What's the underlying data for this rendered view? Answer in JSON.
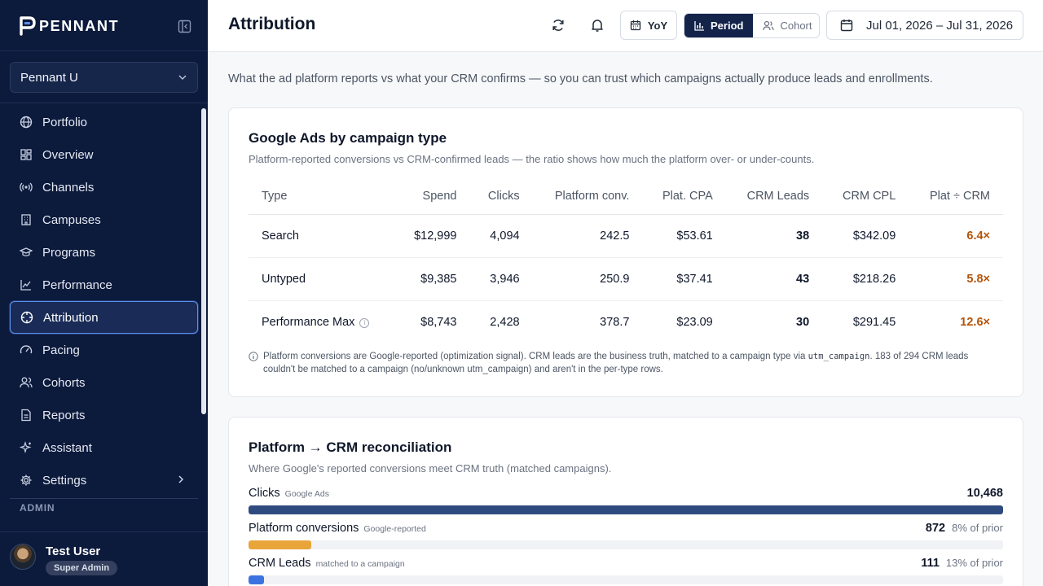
{
  "sidebar": {
    "brand": "PENNANT",
    "org": "Pennant U",
    "items": [
      {
        "label": "Portfolio",
        "icon": "globe-icon"
      },
      {
        "label": "Overview",
        "icon": "grid-icon"
      },
      {
        "label": "Channels",
        "icon": "broadcast-icon"
      },
      {
        "label": "Campuses",
        "icon": "building-icon"
      },
      {
        "label": "Programs",
        "icon": "graduation-cap-icon"
      },
      {
        "label": "Performance",
        "icon": "line-chart-icon"
      },
      {
        "label": "Attribution",
        "icon": "crosshair-icon",
        "active": true
      },
      {
        "label": "Pacing",
        "icon": "gauge-icon"
      },
      {
        "label": "Cohorts",
        "icon": "users-icon"
      },
      {
        "label": "Reports",
        "icon": "file-icon"
      },
      {
        "label": "Assistant",
        "icon": "sparkles-icon"
      },
      {
        "label": "Settings",
        "icon": "gear-icon"
      }
    ],
    "admin_label": "ADMIN",
    "user": {
      "name": "Test User",
      "role": "Super Admin"
    }
  },
  "header": {
    "title": "Attribution",
    "yoy_label": "YoY",
    "period_label": "Period",
    "cohort_label": "Cohort",
    "date_range": "Jul 01, 2026 – Jul 31, 2026"
  },
  "intro": "What the ad platform reports vs what your CRM confirms — so you can trust which campaigns actually produce leads and enrollments.",
  "campaign_card": {
    "title": "Google Ads by campaign type",
    "subtitle": "Platform-reported conversions vs CRM-confirmed leads — the ratio shows how much the platform over- or under-counts.",
    "columns": [
      "Type",
      "Spend",
      "Clicks",
      "Platform conv.",
      "Plat. CPA",
      "CRM Leads",
      "CRM CPL",
      "Plat ÷ CRM"
    ],
    "rows": [
      {
        "type": "Search",
        "spend": "$12,999",
        "clicks": "4,094",
        "conv": "242.5",
        "cpa": "$53.61",
        "leads": "38",
        "cpl": "$342.09",
        "ratio": "6.4×"
      },
      {
        "type": "Untyped",
        "spend": "$9,385",
        "clicks": "3,946",
        "conv": "250.9",
        "cpa": "$37.41",
        "leads": "43",
        "cpl": "$218.26",
        "ratio": "5.8×"
      },
      {
        "type": "Performance Max",
        "spend": "$8,743",
        "clicks": "2,428",
        "conv": "378.7",
        "cpa": "$23.09",
        "leads": "30",
        "cpl": "$291.45",
        "ratio": "12.6×"
      }
    ],
    "footnote_a": "Platform conversions are Google-reported (optimization signal). CRM leads are the business truth, matched to a campaign type via ",
    "footnote_code": "utm_campaign",
    "footnote_b": ". 183 of 294 CRM leads couldn't be matched to a campaign (no/unknown utm_campaign) and aren't in the per-type rows."
  },
  "recon_card": {
    "title": "Platform → CRM reconciliation",
    "subtitle": "Where Google's reported conversions meet CRM truth (matched campaigns).",
    "metrics": [
      {
        "label": "Clicks",
        "tag": "Google Ads",
        "value": "10,468",
        "pct": "",
        "fill": 1.0,
        "color": "#2f4a7f"
      },
      {
        "label": "Platform conversions",
        "tag": "Google-reported",
        "value": "872",
        "pct": "8% of prior",
        "fill": 0.083,
        "color": "#e8a53a"
      },
      {
        "label": "CRM Leads",
        "tag": "matched to a campaign",
        "value": "111",
        "pct": "13% of prior",
        "fill": 0.02,
        "color": "#3b74e0"
      }
    ]
  }
}
